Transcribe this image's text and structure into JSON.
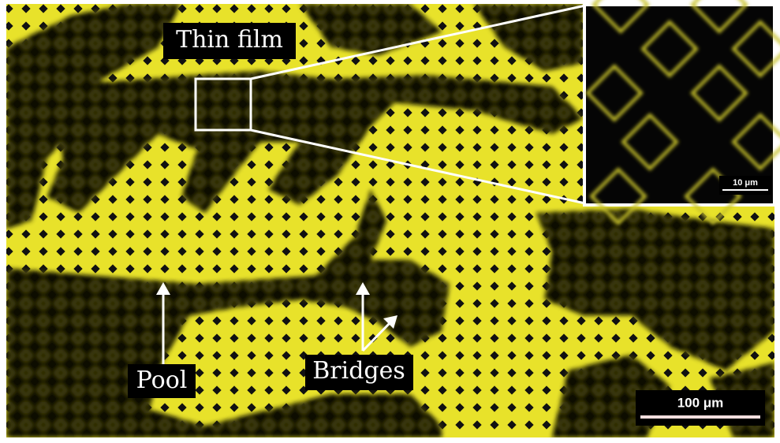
{
  "labels": {
    "thin_film": "Thin film",
    "pool": "Pool",
    "bridges": "Bridges"
  },
  "scale_bar": "100 μm",
  "inset_scale_bar": "10 μm"
}
